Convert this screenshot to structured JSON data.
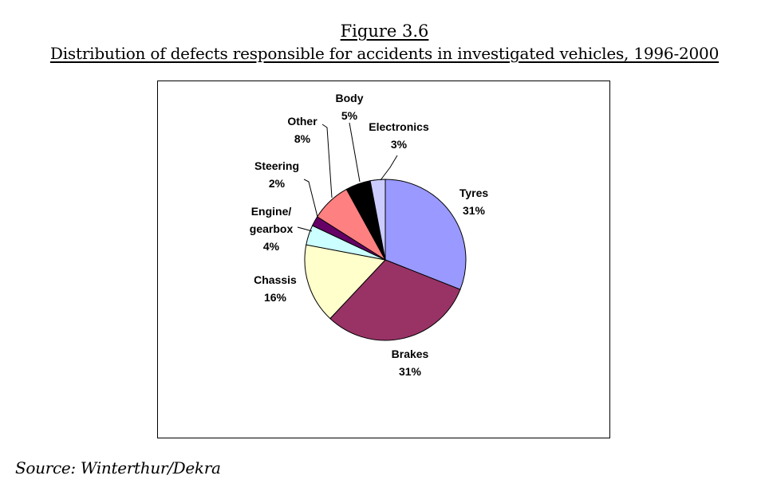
{
  "figure": {
    "label": "Figure 3.6",
    "caption": "Distribution of defects responsible for accidents in investigated vehicles, 1996-2000"
  },
  "source": "Source: Winterthur/Dekra",
  "chart_data": {
    "type": "pie",
    "title": "",
    "unit": "%",
    "slices": [
      {
        "label": "Tyres",
        "value": 31,
        "display": "31%",
        "color": "#9999FF"
      },
      {
        "label": "Brakes",
        "value": 31,
        "display": "31%",
        "color": "#993366"
      },
      {
        "label": "Chassis",
        "value": 16,
        "display": "16%",
        "color": "#FFFFCC"
      },
      {
        "label": "Engine/ gearbox",
        "lines": [
          "Engine/",
          "gearbox"
        ],
        "value": 4,
        "display": "4%",
        "color": "#CCFFFF"
      },
      {
        "label": "Steering",
        "value": 2,
        "display": "2%",
        "color": "#660066"
      },
      {
        "label": "Other",
        "value": 8,
        "display": "8%",
        "color": "#FF8080"
      },
      {
        "label": "Body",
        "value": 5,
        "display": "5%",
        "color": "#000000"
      },
      {
        "label": "Electronics",
        "value": 3,
        "display": "3%",
        "color": "#CCCCFF"
      }
    ],
    "start_angle": "12 o'clock",
    "direction": "clockwise",
    "legend": "none"
  }
}
